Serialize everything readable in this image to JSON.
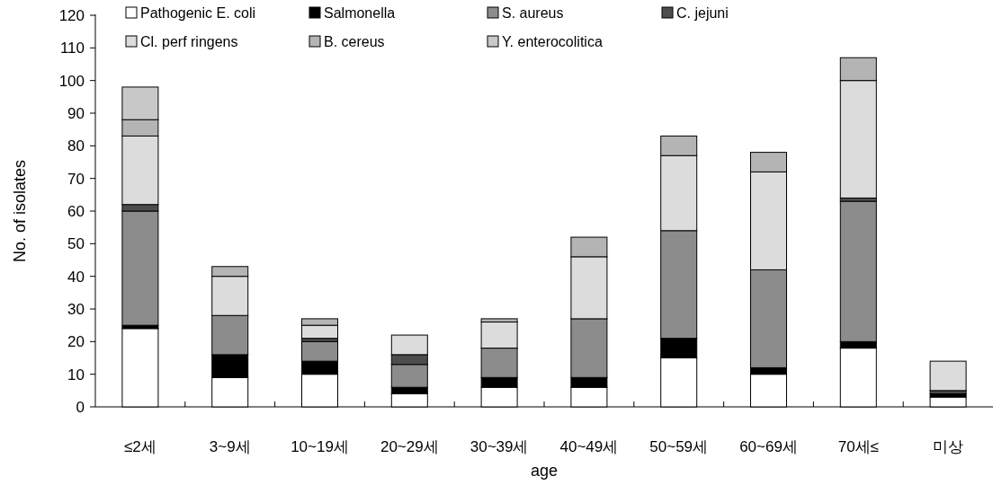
{
  "chart_data": {
    "type": "bar",
    "stacked": true,
    "xlabel": "age",
    "ylabel": "No. of isolates",
    "categories": [
      "≤2세",
      "3~9세",
      "10~19세",
      "20~29세",
      "30~39세",
      "40~49세",
      "50~59세",
      "60~69세",
      "70세≤",
      "미상"
    ],
    "ylim": [
      0,
      120
    ],
    "yticks": [
      0,
      10,
      20,
      30,
      40,
      50,
      60,
      70,
      80,
      90,
      100,
      110,
      120
    ],
    "legend": "top",
    "grid": false,
    "series": [
      {
        "name": "Pathogenic E. coli",
        "color": "#ffffff",
        "values": [
          24,
          9,
          10,
          4,
          6,
          6,
          15,
          10,
          18,
          3
        ]
      },
      {
        "name": "Salmonella",
        "color": "#000000",
        "values": [
          1,
          7,
          4,
          2,
          3,
          3,
          6,
          2,
          2,
          1
        ]
      },
      {
        "name": "S. aureus",
        "color": "#8c8c8c",
        "values": [
          35,
          12,
          6,
          7,
          9,
          18,
          33,
          30,
          43,
          0
        ]
      },
      {
        "name": "C. jejuni",
        "color": "#4d4d4d",
        "values": [
          2,
          0,
          1,
          3,
          0,
          0,
          0,
          0,
          1,
          1
        ]
      },
      {
        "name": "Cl. perf ringens",
        "color": "#dcdcdc",
        "values": [
          21,
          12,
          4,
          6,
          8,
          19,
          23,
          30,
          36,
          9
        ]
      },
      {
        "name": "B. cereus",
        "color": "#b4b4b4",
        "values": [
          5,
          3,
          2,
          0,
          1,
          6,
          6,
          6,
          7,
          0
        ]
      },
      {
        "name": "Y. enterocolitica",
        "color": "#c8c8c8",
        "values": [
          10,
          0,
          0,
          0,
          0,
          0,
          0,
          0,
          0,
          0
        ]
      }
    ]
  }
}
